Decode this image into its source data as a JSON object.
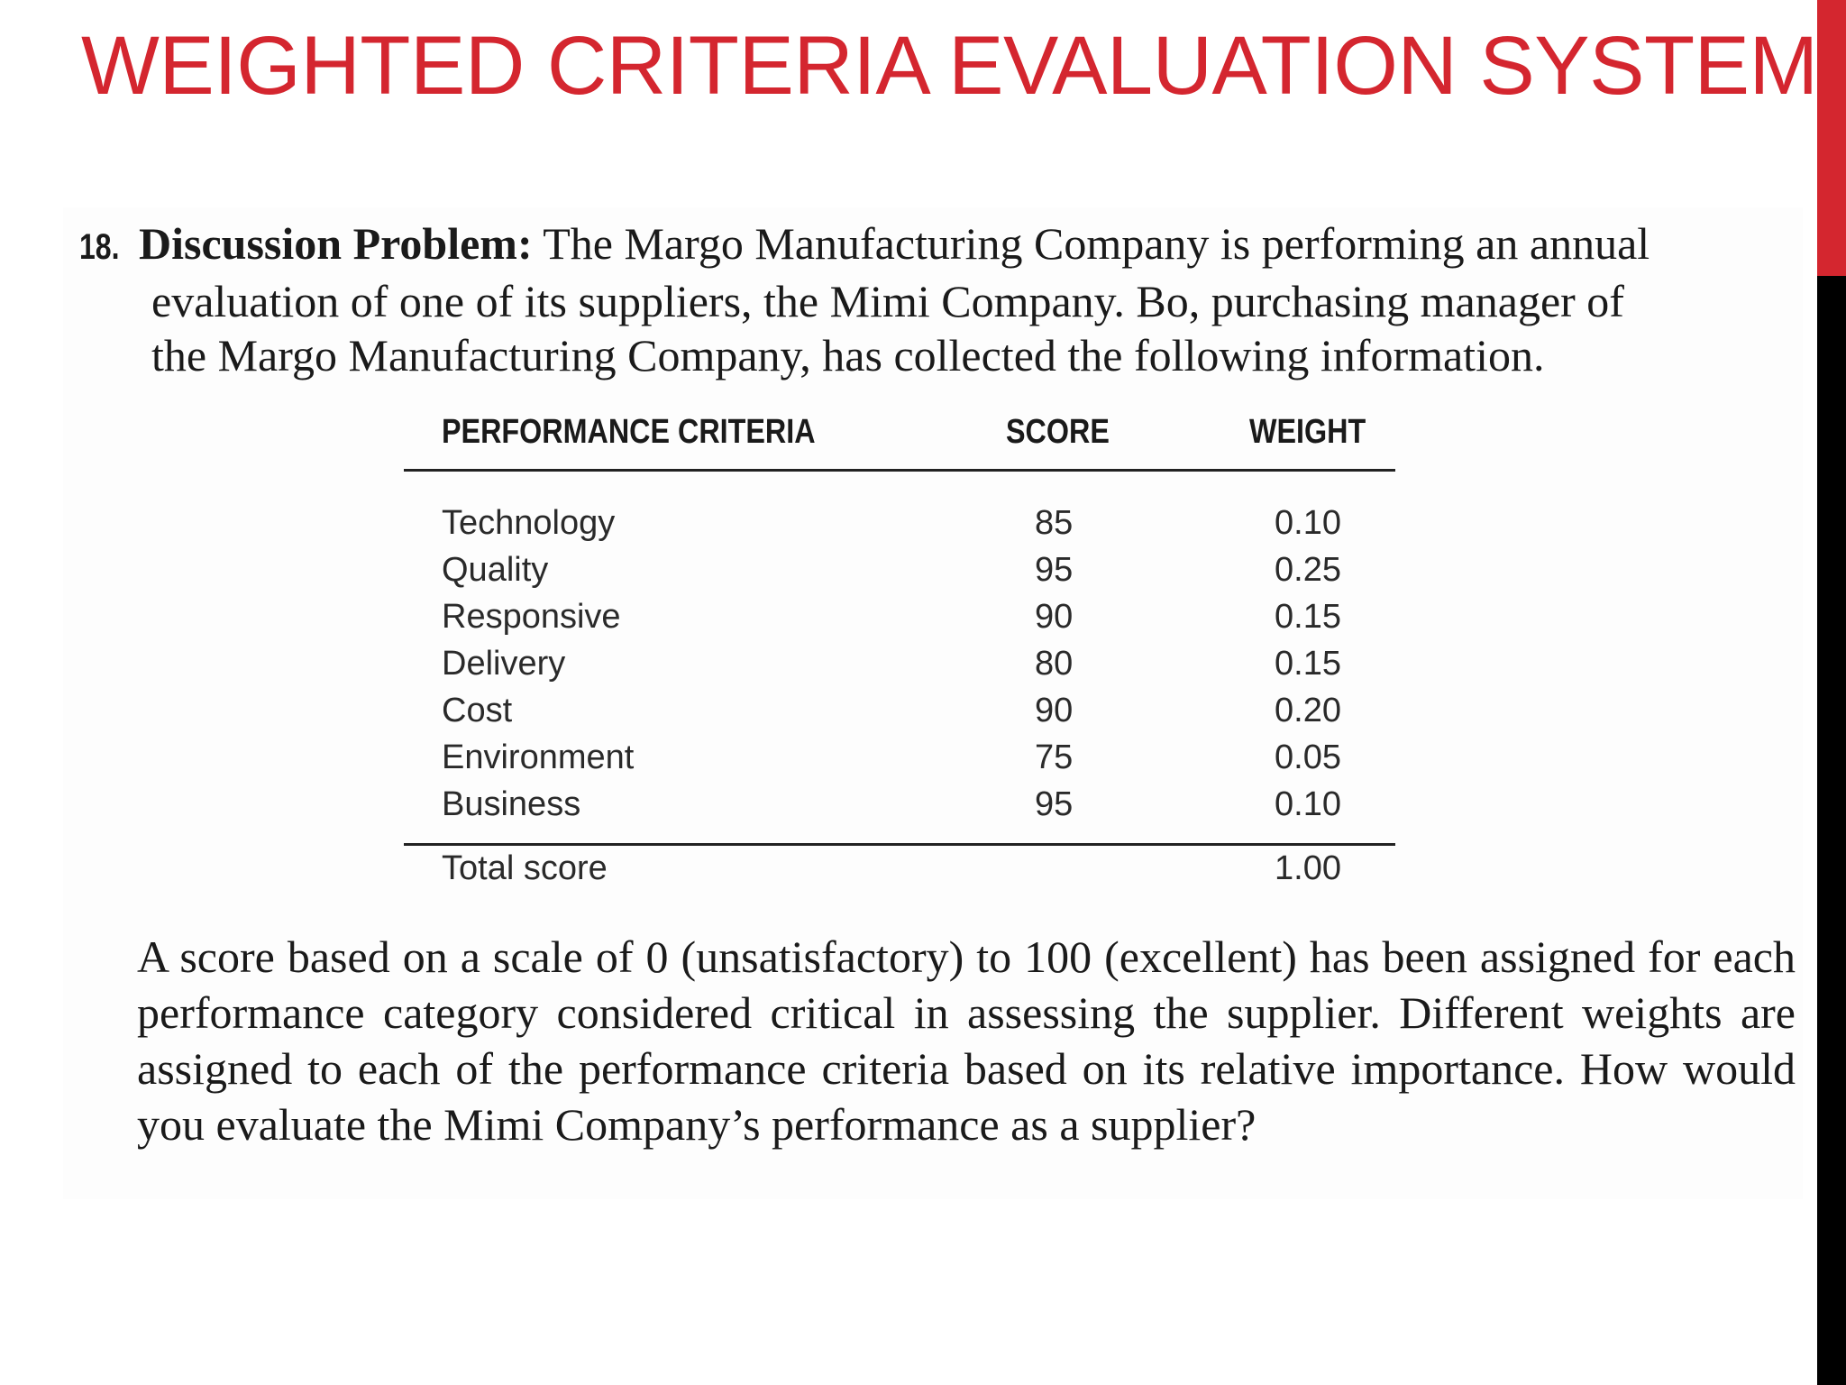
{
  "colors": {
    "title": "#d4262f",
    "side_bar_top": "#d4262f",
    "side_bar_bottom": "#000000"
  },
  "title": "WEIGHTED CRITERIA EVALUATION SYSTEM",
  "problem": {
    "number": "18.",
    "lead": "Discussion Problem:",
    "lines": [
      "The Margo Manufacturing Company is performing an annual",
      "evaluation of one of its suppliers, the Mimi Company. Bo, purchasing manager of",
      "the Margo Manufacturing Company, has collected the following information."
    ]
  },
  "table": {
    "headers": {
      "criteria": "PERFORMANCE CRITERIA",
      "score": "SCORE",
      "weight": "WEIGHT"
    },
    "rows": [
      {
        "criteria": "Technology",
        "score": "85",
        "weight": "0.10"
      },
      {
        "criteria": "Quality",
        "score": "95",
        "weight": "0.25"
      },
      {
        "criteria": "Responsive",
        "score": "90",
        "weight": "0.15"
      },
      {
        "criteria": "Delivery",
        "score": "80",
        "weight": "0.15"
      },
      {
        "criteria": "Cost",
        "score": "90",
        "weight": "0.20"
      },
      {
        "criteria": "Environment",
        "score": "75",
        "weight": "0.05"
      },
      {
        "criteria": "Business",
        "score": "95",
        "weight": "0.10"
      }
    ],
    "total": {
      "label": "Total score",
      "weight": "1.00"
    }
  },
  "closing": "A score based on a scale of 0 (unsatisfactory) to 100 (excellent) has been assigned for each performance category considered critical in assessing the supplier. Different weights are assigned to each of the performance criteria based on its relative importance. How would you evaluate the Mimi Company’s performance as a supplier?"
}
